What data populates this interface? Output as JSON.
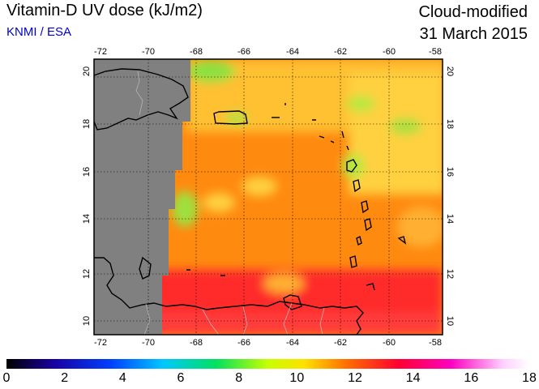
{
  "header": {
    "title": "Vitamin-D UV dose (kJ/m2)",
    "credit": "KNMI / ESA",
    "subtitle": "Cloud-modified",
    "date": "31 March 2015"
  },
  "map": {
    "lon_labels": [
      "-72",
      "-70",
      "-68",
      "-66",
      "-64",
      "-62",
      "-60",
      "-58"
    ],
    "lat_labels": [
      "10",
      "12",
      "14",
      "16",
      "18",
      "20"
    ],
    "no_data_color": "#808080",
    "coastline_color": "#000000",
    "grid": "dotted"
  },
  "colorbar": {
    "labels": [
      "0",
      "2",
      "4",
      "6",
      "8",
      "10",
      "12",
      "14",
      "16",
      "18"
    ],
    "stops": [
      "#000000",
      "#1a00a0",
      "#0040ff",
      "#00c8ff",
      "#00e060",
      "#c8ff00",
      "#ffe000",
      "#ff7000",
      "#ff0030",
      "#ff00c0",
      "#ffd0ff",
      "#ffffff"
    ]
  }
}
